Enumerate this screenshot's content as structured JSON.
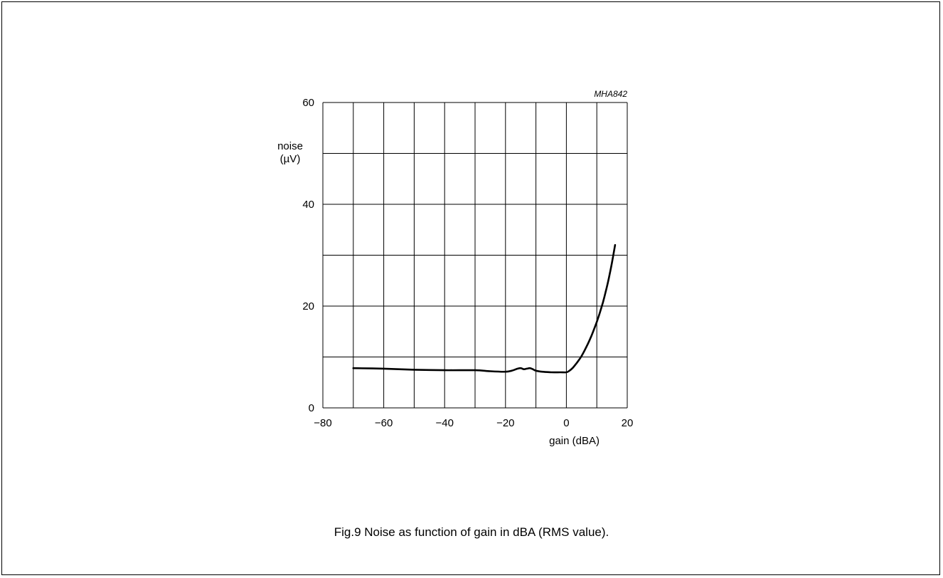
{
  "figure_code": "MHA842",
  "caption": "Fig.9  Noise as function of gain in dBA (RMS value).",
  "chart_data": {
    "type": "line",
    "title": "",
    "xlabel": "gain (dBA)",
    "ylabel_lines": [
      "noise",
      "(µV)"
    ],
    "xlim": [
      -80,
      20
    ],
    "ylim": [
      0,
      60
    ],
    "x_ticks": [
      -80,
      -60,
      -40,
      -20,
      0,
      20
    ],
    "x_tick_labels": [
      "−80",
      "−60",
      "−40",
      "−20",
      "0",
      "20"
    ],
    "y_ticks": [
      0,
      20,
      40,
      60
    ],
    "y_tick_labels": [
      "0",
      "20",
      "40",
      "60"
    ],
    "grid": {
      "x_step": 10,
      "y_step": 10,
      "enabled": true
    },
    "series": [
      {
        "color": "#000000",
        "x": [
          -70,
          -60,
          -50,
          -40,
          -30,
          -25,
          -20,
          -18,
          -16,
          -15,
          -14,
          -13,
          -12,
          -11,
          -10,
          -8,
          -5,
          -2,
          0,
          1,
          2,
          3,
          4,
          5,
          6,
          7,
          8,
          9,
          10,
          11,
          12,
          13,
          14,
          15,
          16
        ],
        "y": [
          7.8,
          7.7,
          7.5,
          7.4,
          7.4,
          7.2,
          7.1,
          7.3,
          7.7,
          7.8,
          7.6,
          7.7,
          7.8,
          7.6,
          7.3,
          7.1,
          7.0,
          7.0,
          7.0,
          7.3,
          7.8,
          8.5,
          9.3,
          10.2,
          11.3,
          12.5,
          13.8,
          15.3,
          16.9,
          18.7,
          20.7,
          23.0,
          25.6,
          28.6,
          32.0
        ]
      }
    ]
  }
}
